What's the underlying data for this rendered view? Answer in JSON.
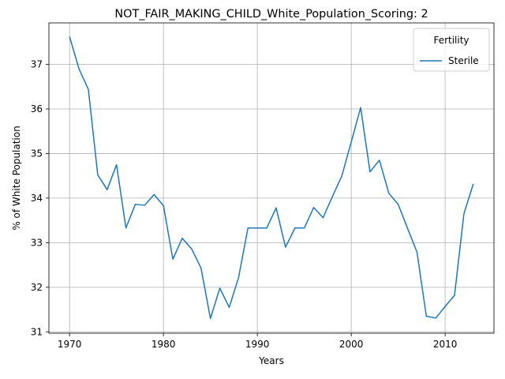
{
  "chart_data": {
    "type": "line",
    "title": "NOT_FAIR_MAKING_CHILD_White_Population_Scoring: 2",
    "xlabel": "Years",
    "ylabel": "% of White Population",
    "xlim": [
      1967.8,
      2015.2
    ],
    "ylim": [
      30.97,
      37.93
    ],
    "xticks": [
      1970,
      1980,
      1990,
      2000,
      2010
    ],
    "yticks": [
      31,
      32,
      33,
      34,
      35,
      36,
      37
    ],
    "grid": true,
    "legend": {
      "title": "Fertility",
      "placement": "top-right"
    },
    "line_color": "#1f77b4",
    "series": [
      {
        "name": "Sterile",
        "x": [
          1970,
          1971,
          1972,
          1973,
          1974,
          1975,
          1976,
          1977,
          1978,
          1979,
          1980,
          1981,
          1982,
          1983,
          1984,
          1985,
          1986,
          1987,
          1988,
          1989,
          1990,
          1991,
          1992,
          1993,
          1994,
          1995,
          1996,
          1997,
          1998,
          1999,
          2000,
          2001,
          2002,
          2003,
          2004,
          2005,
          2006,
          2007,
          2008,
          2009,
          2010,
          2011,
          2012,
          2013
        ],
        "values": [
          37.62,
          36.9,
          36.44,
          34.52,
          34.19,
          34.75,
          33.33,
          33.86,
          33.84,
          34.08,
          33.83,
          32.63,
          33.1,
          32.86,
          32.43,
          31.3,
          31.98,
          31.55,
          32.22,
          33.33,
          33.33,
          33.33,
          33.78,
          32.9,
          33.33,
          33.33,
          33.79,
          33.56,
          34.04,
          34.5,
          35.26,
          36.03,
          34.59,
          34.85,
          34.11,
          33.86,
          33.32,
          32.79,
          31.35,
          31.31,
          31.57,
          31.82,
          33.65,
          34.32
        ]
      }
    ]
  }
}
